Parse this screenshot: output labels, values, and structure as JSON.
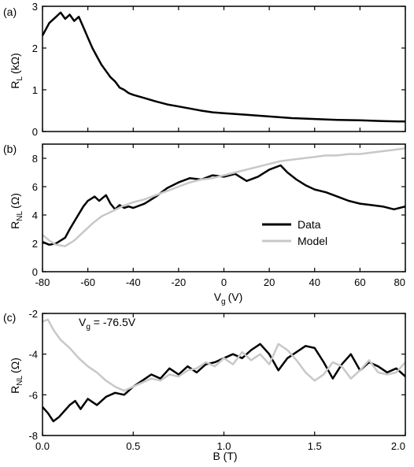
{
  "chart_data": [
    {
      "panel": "(a)",
      "type": "line",
      "ylabel_main": "R",
      "ylabel_sub": "L",
      "ylabel_unit": "(kΩ)",
      "xlim": [
        -80,
        80
      ],
      "ylim": [
        0,
        3
      ],
      "yticks": [
        0,
        1,
        2,
        3
      ],
      "xticks": [
        -80,
        -60,
        -40,
        -20,
        0,
        20,
        40,
        60,
        80
      ],
      "show_xtick_labels": false,
      "series": [
        {
          "color": "#000000",
          "x": [
            -80,
            -77,
            -74,
            -72,
            -70,
            -68,
            -66,
            -64,
            -62,
            -60,
            -58,
            -56,
            -54,
            -52,
            -50,
            -48,
            -46,
            -44,
            -42,
            -40,
            -35,
            -30,
            -25,
            -20,
            -15,
            -10,
            -5,
            0,
            5,
            10,
            20,
            30,
            40,
            50,
            60,
            70,
            80
          ],
          "y": [
            2.3,
            2.6,
            2.75,
            2.85,
            2.7,
            2.8,
            2.65,
            2.75,
            2.5,
            2.25,
            2.0,
            1.8,
            1.6,
            1.45,
            1.3,
            1.2,
            1.05,
            1.0,
            0.92,
            0.88,
            0.8,
            0.72,
            0.65,
            0.6,
            0.55,
            0.5,
            0.46,
            0.44,
            0.42,
            0.4,
            0.36,
            0.32,
            0.3,
            0.28,
            0.27,
            0.25,
            0.24
          ]
        }
      ]
    },
    {
      "panel": "(b)",
      "type": "line",
      "ylabel_main": "R",
      "ylabel_sub": "NL",
      "ylabel_unit": "(Ω)",
      "xlabel_main": "V",
      "xlabel_sub": "g",
      "xlabel_unit": "(V)",
      "xlim": [
        -80,
        80
      ],
      "ylim": [
        0,
        9
      ],
      "yticks": [
        0,
        2,
        4,
        6,
        8
      ],
      "xticks": [
        -80,
        -60,
        -40,
        -20,
        0,
        20,
        40,
        60,
        80
      ],
      "show_xtick_labels": true,
      "legend": "center-right",
      "series": [
        {
          "name": "Data",
          "color": "#000000",
          "x": [
            -80,
            -77,
            -74,
            -72,
            -70,
            -68,
            -65,
            -62,
            -60,
            -57,
            -55,
            -52,
            -50,
            -48,
            -46,
            -44,
            -42,
            -40,
            -35,
            -30,
            -25,
            -20,
            -15,
            -10,
            -5,
            0,
            5,
            10,
            15,
            20,
            25,
            28,
            32,
            36,
            40,
            45,
            50,
            55,
            60,
            65,
            70,
            75,
            80
          ],
          "y": [
            2.1,
            1.9,
            2.0,
            2.2,
            2.4,
            3.0,
            3.8,
            4.6,
            5.0,
            5.3,
            5.0,
            5.4,
            4.8,
            4.4,
            4.7,
            4.5,
            4.6,
            4.5,
            4.8,
            5.3,
            5.9,
            6.3,
            6.6,
            6.5,
            6.8,
            6.7,
            6.9,
            6.4,
            6.7,
            7.2,
            7.5,
            7.0,
            6.5,
            6.1,
            5.8,
            5.6,
            5.3,
            5.0,
            4.8,
            4.7,
            4.6,
            4.4,
            4.6
          ]
        },
        {
          "name": "Model",
          "color": "#c8c8c8",
          "x": [
            -80,
            -77,
            -74,
            -70,
            -66,
            -62,
            -58,
            -54,
            -50,
            -45,
            -40,
            -35,
            -30,
            -25,
            -20,
            -15,
            -10,
            -5,
            0,
            5,
            10,
            15,
            20,
            25,
            30,
            35,
            40,
            45,
            50,
            55,
            60,
            65,
            70,
            75,
            80
          ],
          "y": [
            2.6,
            2.2,
            1.9,
            1.8,
            2.2,
            2.8,
            3.4,
            3.9,
            4.2,
            4.6,
            4.9,
            5.1,
            5.4,
            5.7,
            6.0,
            6.3,
            6.5,
            6.6,
            6.8,
            7.0,
            7.2,
            7.4,
            7.6,
            7.8,
            7.9,
            8.0,
            8.1,
            8.2,
            8.2,
            8.3,
            8.3,
            8.4,
            8.5,
            8.6,
            8.7
          ]
        }
      ]
    },
    {
      "panel": "(c)",
      "type": "line",
      "ylabel_main": "R",
      "ylabel_sub": "NL",
      "ylabel_unit": "(Ω)",
      "xlabel": "B (T)",
      "annotation_main": "V",
      "annotation_sub": "g",
      "annotation_rest": " = -76.5V",
      "xlim": [
        0,
        2
      ],
      "ylim": [
        -8,
        -2
      ],
      "yticks": [
        -8,
        -6,
        -4,
        -2
      ],
      "xticks": [
        0.0,
        0.5,
        1.0,
        1.5,
        2.0
      ],
      "xtick_labels": [
        "0.0",
        "0.5",
        "1.0",
        "1.5",
        "2.0"
      ],
      "series": [
        {
          "color": "#000000",
          "x": [
            0.0,
            0.03,
            0.06,
            0.09,
            0.12,
            0.15,
            0.18,
            0.21,
            0.25,
            0.3,
            0.35,
            0.4,
            0.45,
            0.5,
            0.55,
            0.6,
            0.65,
            0.7,
            0.75,
            0.8,
            0.85,
            0.9,
            0.95,
            1.0,
            1.05,
            1.1,
            1.15,
            1.2,
            1.25,
            1.3,
            1.35,
            1.4,
            1.45,
            1.5,
            1.55,
            1.6,
            1.65,
            1.7,
            1.75,
            1.8,
            1.85,
            1.9,
            1.95,
            2.0
          ],
          "y": [
            -6.6,
            -6.9,
            -7.3,
            -7.1,
            -6.8,
            -6.5,
            -6.3,
            -6.7,
            -6.2,
            -6.5,
            -6.1,
            -5.9,
            -6.0,
            -5.6,
            -5.3,
            -5.0,
            -5.2,
            -4.7,
            -5.0,
            -4.6,
            -4.9,
            -4.5,
            -4.4,
            -4.2,
            -4.0,
            -4.2,
            -3.8,
            -3.5,
            -4.0,
            -4.8,
            -4.2,
            -3.9,
            -3.6,
            -3.7,
            -4.4,
            -5.2,
            -4.5,
            -4.0,
            -4.8,
            -4.4,
            -4.6,
            -4.9,
            -4.7,
            -5.1
          ]
        },
        {
          "color": "#c8c8c8",
          "x": [
            0.0,
            0.03,
            0.06,
            0.1,
            0.15,
            0.2,
            0.25,
            0.3,
            0.35,
            0.4,
            0.45,
            0.5,
            0.55,
            0.6,
            0.65,
            0.7,
            0.75,
            0.8,
            0.85,
            0.9,
            0.95,
            1.0,
            1.05,
            1.1,
            1.15,
            1.2,
            1.25,
            1.3,
            1.35,
            1.4,
            1.45,
            1.5,
            1.55,
            1.6,
            1.65,
            1.7,
            1.75,
            1.8,
            1.85,
            1.9,
            1.95,
            2.0
          ],
          "y": [
            -2.4,
            -2.3,
            -2.8,
            -3.3,
            -3.7,
            -4.2,
            -4.6,
            -4.9,
            -5.3,
            -5.6,
            -5.8,
            -5.6,
            -5.4,
            -5.2,
            -5.3,
            -5.0,
            -5.1,
            -4.8,
            -4.7,
            -4.4,
            -4.6,
            -4.2,
            -4.5,
            -3.9,
            -4.3,
            -4.0,
            -4.5,
            -3.5,
            -3.8,
            -4.3,
            -4.9,
            -5.3,
            -5.0,
            -4.4,
            -4.6,
            -5.2,
            -4.8,
            -4.3,
            -4.9,
            -5.0,
            -4.9,
            -4.4
          ]
        }
      ]
    }
  ]
}
